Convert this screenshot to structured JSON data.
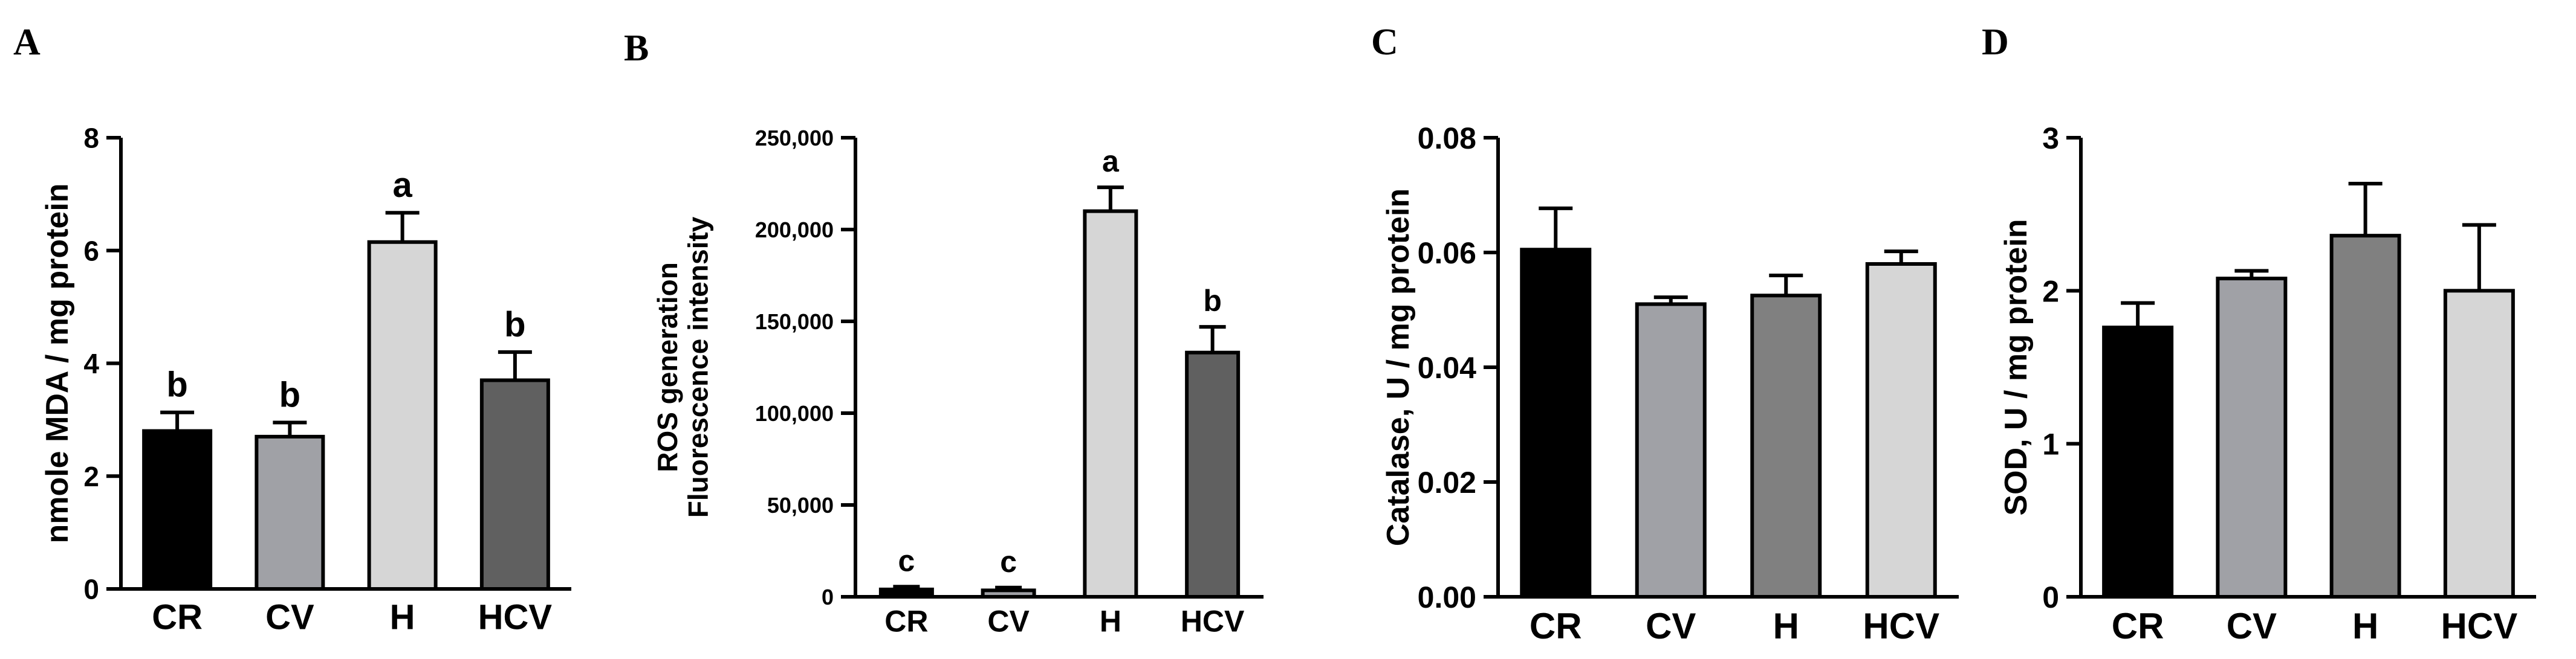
{
  "chart_data": [
    {
      "panel": "A",
      "type": "bar",
      "categories": [
        "CR",
        "CV",
        "H",
        "HCV"
      ],
      "values": [
        2.8,
        2.7,
        6.15,
        3.7
      ],
      "errors": [
        0.33,
        0.25,
        0.52,
        0.5
      ],
      "significance": [
        "b",
        "b",
        "a",
        "b"
      ],
      "colors": [
        "#000000",
        "#a0a1a6",
        "#d6d6d6",
        "#606060"
      ],
      "ylabel": "nmole MDA / mg protein",
      "ylim": [
        0,
        8
      ],
      "yticks": [
        "0",
        "2",
        "4",
        "6",
        "8"
      ],
      "ytick_values": [
        0,
        2,
        4,
        6,
        8
      ],
      "grid": false
    },
    {
      "panel": "B",
      "type": "bar",
      "categories": [
        "CR",
        "CV",
        "H",
        "HCV"
      ],
      "values": [
        4000,
        3500,
        210000,
        133000
      ],
      "errors": [
        1500,
        1500,
        13000,
        14000
      ],
      "significance": [
        "c",
        "c",
        "a",
        "b"
      ],
      "colors": [
        "#000000",
        "#a0a1a6",
        "#d6d6d6",
        "#606060"
      ],
      "ylabel": [
        "ROS generation",
        "Fluorescence intensity"
      ],
      "ylim": [
        0,
        250000
      ],
      "yticks": [
        "0",
        "50,000",
        "100,000",
        "150,000",
        "200,000",
        "250,000"
      ],
      "ytick_values": [
        0,
        50000,
        100000,
        150000,
        200000,
        250000
      ],
      "grid": false
    },
    {
      "panel": "C",
      "type": "bar",
      "categories": [
        "CR",
        "CV",
        "H",
        "HCV"
      ],
      "values": [
        0.0605,
        0.051,
        0.0525,
        0.058
      ],
      "errors": [
        0.0072,
        0.0012,
        0.0035,
        0.0022
      ],
      "significance": [
        "",
        "",
        "",
        ""
      ],
      "colors": [
        "#000000",
        "#a0a1a6",
        "#808080",
        "#d6d6d6"
      ],
      "ylabel": "Catalase, U / mg protein",
      "ylim": [
        0,
        0.08
      ],
      "yticks": [
        "0.00",
        "0.02",
        "0.04",
        "0.06",
        "0.08"
      ],
      "ytick_values": [
        0,
        0.02,
        0.04,
        0.06,
        0.08
      ],
      "grid": false
    },
    {
      "panel": "D",
      "type": "bar",
      "categories": [
        "CR",
        "CV",
        "H",
        "HCV"
      ],
      "values": [
        1.76,
        2.08,
        2.36,
        2.0
      ],
      "errors": [
        0.16,
        0.05,
        0.34,
        0.43
      ],
      "significance": [
        "",
        "",
        "",
        ""
      ],
      "colors": [
        "#000000",
        "#a0a1a6",
        "#808080",
        "#d6d6d6"
      ],
      "ylabel": "SOD, U / mg protein",
      "ylim": [
        0,
        3
      ],
      "yticks": [
        "0",
        "1",
        "2",
        "3"
      ],
      "ytick_values": [
        0,
        1,
        2,
        3
      ],
      "grid": false
    }
  ]
}
